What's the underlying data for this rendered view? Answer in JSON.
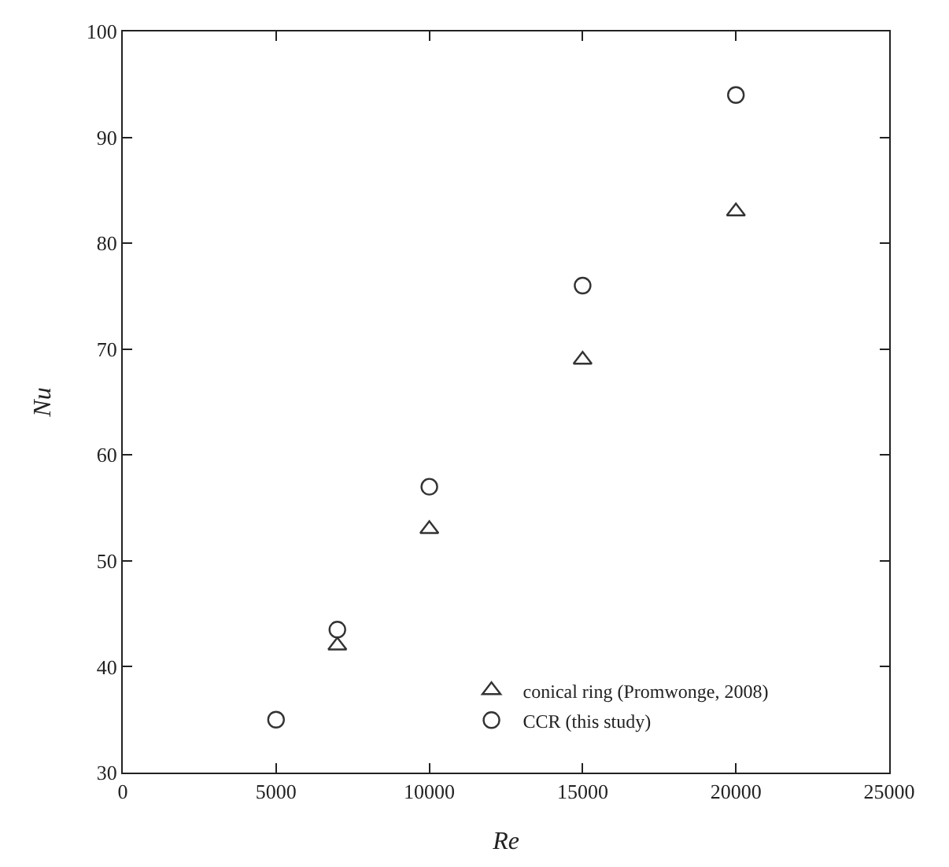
{
  "chart_data": {
    "type": "scatter",
    "xlabel": "Re",
    "ylabel": "Nu",
    "xlim": [
      0,
      25000
    ],
    "xticks": [
      0,
      5000,
      10000,
      15000,
      20000,
      25000
    ],
    "ylim": [
      30,
      100
    ],
    "yticks": [
      30,
      40,
      50,
      60,
      70,
      80,
      90,
      100
    ],
    "grid": false,
    "legend": "bottom right",
    "series": [
      {
        "name": "conical ring (Promwonge, 2008)",
        "color": "#333333",
        "marker": "triangle",
        "x": [
          7000,
          10000,
          15000,
          20000
        ],
        "values": [
          42,
          53,
          69,
          83
        ]
      },
      {
        "name": "CCR (this study)",
        "color": "#333333",
        "marker": "circle",
        "x": [
          5000,
          7000,
          10000,
          15000,
          20000
        ],
        "values": [
          35,
          43.5,
          57,
          76,
          94
        ]
      }
    ]
  }
}
